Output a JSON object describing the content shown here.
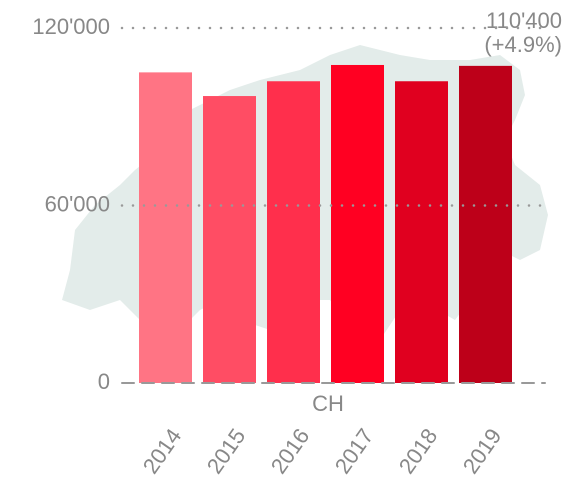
{
  "chart_data": {
    "type": "bar",
    "categories": [
      "2014",
      "2015",
      "2016",
      "2017",
      "2018",
      "2019"
    ],
    "values": [
      105000,
      97000,
      102000,
      107500,
      102000,
      107200
    ],
    "colors": [
      "#ff7484",
      "#ff4d64",
      "#ff2f4c",
      "#ff0022",
      "#e0001f",
      "#bd0019"
    ],
    "ylim": [
      0,
      120000
    ],
    "yticks": [
      0,
      {
        "value": 60000,
        "label": "60'000"
      },
      {
        "value": 120000,
        "label": "120'000"
      }
    ],
    "grid": true,
    "xlabel": "CH",
    "annotations": [
      "110'400",
      "(+4.9%)"
    ]
  }
}
